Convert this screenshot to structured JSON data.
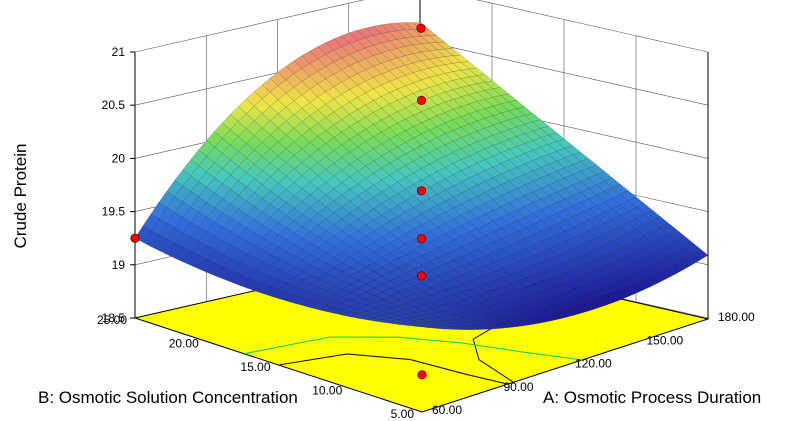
{
  "chart_data": {
    "type": "surface3d",
    "z_axis": {
      "label": "Crude Protein",
      "ticks": [
        "18.5",
        "19",
        "19.5",
        "20",
        "20.5",
        "21"
      ],
      "range": [
        18.5,
        21
      ]
    },
    "x_axis": {
      "label": "A: Osmotic Process Duration",
      "ticks": [
        "60.00",
        "90.00",
        "120.00",
        "150.00",
        "180.00"
      ],
      "range": [
        60,
        180
      ]
    },
    "y_axis": {
      "label": "B: Osmotic Solution Concentration",
      "ticks": [
        "5.00",
        "10.00",
        "15.00",
        "20.00",
        "25.00"
      ],
      "range": [
        5,
        25
      ]
    },
    "surface_corners": [
      {
        "A": 60,
        "B": 25,
        "crude_protein": 18.95
      },
      {
        "A": 180,
        "B": 25,
        "crude_protein": 20.1
      },
      {
        "A": 60,
        "B": 5,
        "crude_protein": 19.0
      },
      {
        "A": 180,
        "B": 5,
        "crude_protein": 18.8
      }
    ],
    "design_points": [
      {
        "A": 60,
        "B": 25,
        "crude_protein": 18.95
      },
      {
        "A": 180,
        "B": 25,
        "crude_protein": 20.05
      },
      {
        "A": 120,
        "B": 15,
        "crude_protein": 19.4
      },
      {
        "A": 120,
        "B": 15,
        "crude_protein": 20.25
      },
      {
        "A": 120,
        "B": 15,
        "crude_protein": 18.95
      },
      {
        "A": 120,
        "B": 15,
        "crude_protein": 18.6
      },
      {
        "A": 60,
        "B": 5,
        "crude_protein": 18.55
      }
    ],
    "colors": {
      "floor": "#ffff00",
      "contour_line": "#1a1a1a",
      "contour_green": "#22c864",
      "contour_red": "#e64646",
      "point": "#ff0000"
    }
  }
}
